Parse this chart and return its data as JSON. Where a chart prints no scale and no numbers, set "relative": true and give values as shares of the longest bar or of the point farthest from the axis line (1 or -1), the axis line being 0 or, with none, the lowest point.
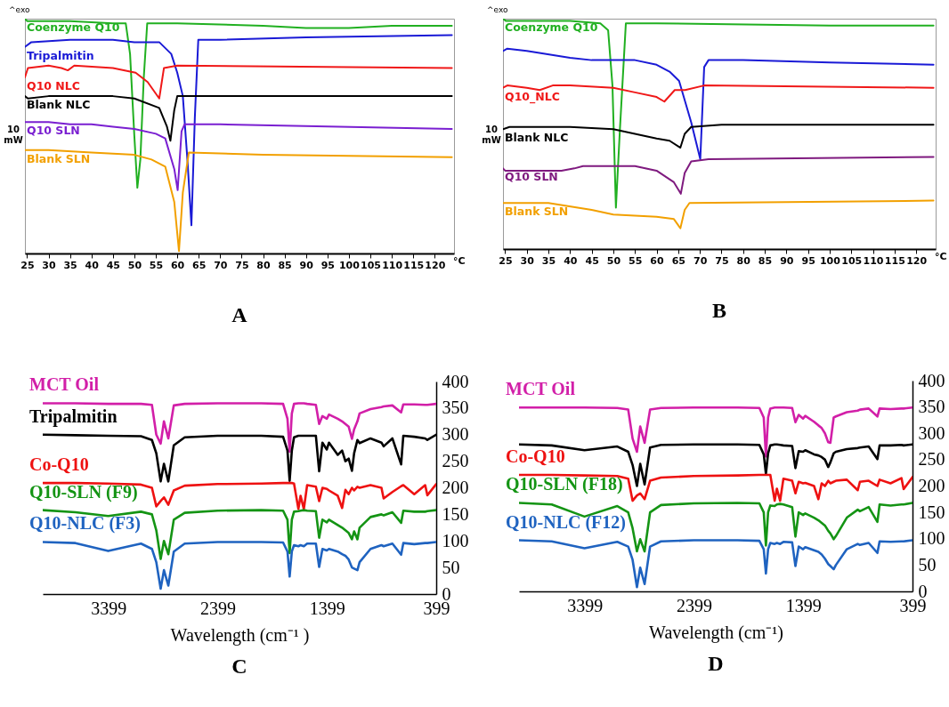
{
  "chart_data": [
    {
      "type": "line",
      "title": "A",
      "relative": true,
      "xlim": [
        24.5,
        124.5
      ],
      "xticks": [
        25,
        30,
        35,
        40,
        45,
        50,
        55,
        60,
        65,
        70,
        75,
        80,
        85,
        90,
        95,
        100,
        105,
        110,
        115,
        120
      ],
      "annotations": [
        "^exo",
        "10\nmW",
        "°C"
      ],
      "series": [
        {
          "name": "Coenzyme Q10",
          "color": "#21b021",
          "x": [
            24.5,
            25,
            35,
            45,
            48,
            49,
            50,
            50.7,
            51.4,
            52.2,
            53,
            60,
            80,
            90,
            100,
            110,
            124
          ],
          "values": [
            1,
            0.99,
            0.99,
            0.98,
            0.98,
            0.85,
            0.5,
            0.28,
            0.4,
            0.75,
            0.98,
            0.98,
            0.97,
            0.96,
            0.96,
            0.97,
            0.97
          ]
        },
        {
          "name": "Tripalmitin",
          "color": "#1a1ad6",
          "x": [
            24.5,
            26,
            35,
            45,
            50,
            55.8,
            58.6,
            60,
            61.3,
            62.4,
            63.3,
            64.1,
            64.9,
            70,
            90,
            124
          ],
          "values": [
            0.88,
            0.9,
            0.91,
            0.91,
            0.9,
            0.9,
            0.85,
            0.77,
            0.67,
            0.39,
            0.12,
            0.58,
            0.91,
            0.91,
            0.92,
            0.93
          ]
        },
        {
          "name": "Q10 NLC",
          "color": "#f01818",
          "x": [
            24.5,
            25.2,
            30,
            33,
            34.5,
            36,
            45,
            50.3,
            53.1,
            55.8,
            56.9,
            60,
            124
          ],
          "values": [
            0.75,
            0.79,
            0.8,
            0.79,
            0.78,
            0.8,
            0.79,
            0.77,
            0.73,
            0.66,
            0.79,
            0.8,
            0.79
          ]
        },
        {
          "name": "Blank NLC",
          "color": "#000000",
          "x": [
            24.5,
            25.2,
            30,
            45,
            50,
            55.8,
            57.6,
            58.4,
            59.3,
            60,
            124
          ],
          "values": [
            0.67,
            0.66,
            0.67,
            0.67,
            0.66,
            0.62,
            0.54,
            0.48,
            0.61,
            0.67,
            0.67
          ]
        },
        {
          "name": "Q10 SLN",
          "color": "#7a1fd1",
          "x": [
            24.5,
            30,
            35,
            40,
            45,
            50,
            55,
            57.2,
            59.3,
            60.1,
            61,
            61.7,
            70,
            124
          ],
          "values": [
            0.56,
            0.56,
            0.55,
            0.55,
            0.54,
            0.53,
            0.51,
            0.49,
            0.36,
            0.27,
            0.52,
            0.55,
            0.55,
            0.53
          ]
        },
        {
          "name": "Blank SLN",
          "color": "#f2a000",
          "x": [
            24.5,
            30,
            40,
            50,
            54,
            57.2,
            59.3,
            60.4,
            61.3,
            62.7,
            80,
            124
          ],
          "values": [
            0.44,
            0.44,
            0.43,
            0.42,
            0.4,
            0.37,
            0.22,
            0.01,
            0.26,
            0.43,
            0.42,
            0.41
          ]
        }
      ]
    },
    {
      "type": "line",
      "title": "B",
      "relative": true,
      "xlim": [
        24.5,
        124.5
      ],
      "xticks": [
        25,
        30,
        35,
        40,
        45,
        50,
        55,
        60,
        65,
        70,
        75,
        80,
        85,
        90,
        95,
        100,
        105,
        110,
        115,
        120
      ],
      "annotations": [
        "^exo",
        "10\nmW",
        "°C"
      ],
      "series": [
        {
          "name": "Coenzyme Q10",
          "color": "#21b021",
          "x": [
            24.5,
            25.2,
            40,
            47,
            48.8,
            49.8,
            50.6,
            51.5,
            52.9,
            60,
            100,
            124
          ],
          "values": [
            1,
            0.99,
            0.99,
            0.98,
            0.95,
            0.71,
            0.18,
            0.51,
            0.98,
            0.98,
            0.97,
            0.97
          ]
        },
        {
          "color": "#1a1ad6",
          "x": [
            24.5,
            25.5,
            30,
            40,
            45,
            55,
            60,
            63,
            65.2,
            68,
            70.1,
            71,
            72,
            80,
            100,
            124
          ],
          "values": [
            0.86,
            0.87,
            0.86,
            0.83,
            0.82,
            0.82,
            0.8,
            0.77,
            0.73,
            0.55,
            0.39,
            0.79,
            0.82,
            0.82,
            0.81,
            0.8
          ]
        },
        {
          "name": "Q10_NLC",
          "color": "#f01818",
          "x": [
            24.5,
            25.5,
            30,
            33,
            36,
            40,
            50,
            55,
            60,
            61.8,
            64.2,
            66.6,
            71,
            124
          ],
          "values": [
            0.7,
            0.71,
            0.7,
            0.69,
            0.71,
            0.71,
            0.7,
            0.68,
            0.66,
            0.64,
            0.69,
            0.69,
            0.71,
            0.7
          ]
        },
        {
          "name": "Blank NLC",
          "color": "#000000",
          "x": [
            24.5,
            26,
            40,
            50,
            55,
            60,
            63,
            65.5,
            66.5,
            68,
            75,
            124
          ],
          "values": [
            0.52,
            0.53,
            0.53,
            0.52,
            0.5,
            0.48,
            0.47,
            0.44,
            0.5,
            0.53,
            0.54,
            0.54
          ]
        },
        {
          "name": "Q10 SLN",
          "color": "#7f1a7f",
          "x": [
            24.5,
            25,
            30,
            38,
            41,
            43,
            55,
            60,
            64,
            65.6,
            66.5,
            68,
            72,
            124
          ],
          "values": [
            0.35,
            0.34,
            0.34,
            0.34,
            0.35,
            0.36,
            0.36,
            0.34,
            0.29,
            0.24,
            0.33,
            0.38,
            0.39,
            0.4
          ]
        },
        {
          "name": "Blank SLN",
          "color": "#f2a000",
          "x": [
            24.5,
            25.5,
            35,
            45,
            50,
            60,
            64,
            65.5,
            66.5,
            67.6,
            124
          ],
          "values": [
            0.2,
            0.2,
            0.2,
            0.17,
            0.15,
            0.14,
            0.13,
            0.09,
            0.17,
            0.2,
            0.21
          ]
        }
      ]
    },
    {
      "type": "line",
      "title": "C",
      "xlabel": "Wavelength (cm⁻¹ )",
      "xlim": [
        3999,
        399
      ],
      "xticks": [
        3399,
        2399,
        1399,
        399
      ],
      "ylim": [
        0,
        400
      ],
      "yticks": [
        400,
        350,
        300,
        250,
        200,
        150,
        100,
        50,
        0
      ],
      "x": [
        3999,
        3700,
        3400,
        3100,
        3000,
        2960,
        2920,
        2890,
        2850,
        2800,
        2700,
        2400,
        2000,
        1800,
        1760,
        1740,
        1720,
        1700,
        1660,
        1640,
        1610,
        1580,
        1500,
        1470,
        1440,
        1400,
        1380,
        1300,
        1260,
        1230,
        1200,
        1170,
        1150,
        1120,
        1100,
        1000,
        900,
        880,
        800,
        720,
        700,
        600,
        500,
        480,
        399
      ],
      "series": [
        {
          "name": "MCT Oil",
          "color": "#d21fa8",
          "values": [
            359,
            359,
            358,
            358,
            356,
            300,
            283,
            325,
            293,
            355,
            358,
            359,
            359,
            358,
            330,
            268,
            340,
            358,
            359,
            359,
            359,
            358,
            356,
            320,
            335,
            330,
            338,
            330,
            325,
            320,
            315,
            292,
            310,
            325,
            340,
            348,
            352,
            353,
            355,
            342,
            357,
            357,
            356,
            356,
            358
          ]
        },
        {
          "name": "Tripalmitin",
          "color": "#000000",
          "values": [
            300,
            299,
            298,
            297,
            290,
            265,
            212,
            245,
            212,
            280,
            295,
            298,
            298,
            296,
            270,
            213,
            270,
            295,
            298,
            298,
            298,
            298,
            298,
            231,
            285,
            272,
            285,
            262,
            270,
            250,
            255,
            232,
            265,
            290,
            284,
            293,
            285,
            278,
            293,
            244,
            298,
            296,
            293,
            290,
            300
          ]
        },
        {
          "name": "Co-Q10",
          "color": "#ee1111",
          "values": [
            209,
            209,
            208,
            206,
            200,
            165,
            175,
            182,
            168,
            195,
            204,
            207,
            208,
            209,
            209,
            209,
            209,
            208,
            160,
            185,
            160,
            205,
            202,
            175,
            200,
            198,
            195,
            185,
            162,
            196,
            188,
            200,
            195,
            202,
            200,
            205,
            200,
            180,
            192,
            203,
            205,
            188,
            205,
            186,
            207
          ]
        },
        {
          "name": "Q10-SLN (F9)",
          "color": "#149414",
          "values": [
            158,
            154,
            147,
            155,
            150,
            120,
            66,
            100,
            75,
            140,
            153,
            157,
            158,
            157,
            140,
            77,
            140,
            155,
            156,
            157,
            158,
            157,
            156,
            106,
            140,
            135,
            140,
            130,
            125,
            120,
            115,
            103,
            118,
            103,
            125,
            145,
            150,
            148,
            154,
            134,
            157,
            155,
            155,
            156,
            158
          ]
        },
        {
          "name": "Q10-NLC (F3)",
          "color": "#1f63c0",
          "values": [
            98,
            96,
            81,
            95,
            85,
            60,
            10,
            45,
            16,
            80,
            95,
            98,
            98,
            97,
            80,
            33,
            80,
            92,
            90,
            92,
            90,
            95,
            95,
            51,
            85,
            82,
            85,
            80,
            75,
            72,
            65,
            50,
            48,
            45,
            60,
            85,
            92,
            90,
            95,
            74,
            96,
            94,
            96,
            96,
            98
          ]
        }
      ]
    },
    {
      "type": "line",
      "title": "D",
      "xlabel": "Wavelength (cm⁻¹)",
      "xlim": [
        3999,
        399
      ],
      "xticks": [
        3399,
        2399,
        1399,
        399
      ],
      "ylim": [
        0,
        400
      ],
      "yticks": [
        400,
        350,
        300,
        250,
        200,
        150,
        100,
        50,
        0
      ],
      "x": [
        3999,
        3700,
        3400,
        3100,
        3000,
        2960,
        2920,
        2890,
        2850,
        2800,
        2700,
        2400,
        2000,
        1800,
        1760,
        1740,
        1720,
        1700,
        1660,
        1640,
        1610,
        1580,
        1500,
        1470,
        1440,
        1400,
        1380,
        1300,
        1260,
        1230,
        1200,
        1170,
        1150,
        1120,
        1100,
        1000,
        900,
        880,
        800,
        720,
        700,
        600,
        500,
        480,
        399
      ],
      "series": [
        {
          "name": "MCT Oil",
          "color": "#d21fa8",
          "values": [
            349,
            349,
            349,
            348,
            345,
            290,
            265,
            313,
            282,
            345,
            348,
            349,
            349,
            348,
            330,
            256,
            330,
            347,
            349,
            349,
            349,
            349,
            348,
            321,
            335,
            328,
            333,
            322,
            315,
            310,
            300,
            283,
            282,
            330,
            332,
            340,
            343,
            345,
            347,
            332,
            347,
            346,
            347,
            347,
            349
          ]
        },
        {
          "color": "#000000",
          "values": [
            279,
            277,
            268,
            275,
            265,
            240,
            200,
            242,
            203,
            273,
            278,
            279,
            279,
            278,
            260,
            223,
            262,
            277,
            279,
            279,
            278,
            277,
            276,
            234,
            266,
            265,
            268,
            260,
            258,
            255,
            250,
            236,
            245,
            262,
            265,
            270,
            272,
            273,
            275,
            251,
            277,
            277,
            278,
            277,
            279
          ]
        },
        {
          "name": "Co-Q10",
          "color": "#ee1111",
          "values": [
            221,
            221,
            220,
            219,
            214,
            172,
            182,
            186,
            175,
            210,
            216,
            219,
            220,
            221,
            221,
            221,
            221,
            221,
            172,
            195,
            172,
            214,
            210,
            186,
            208,
            205,
            206,
            200,
            175,
            205,
            200,
            210,
            205,
            208,
            210,
            212,
            192,
            208,
            210,
            200,
            212,
            205,
            215,
            194,
            217
          ]
        },
        {
          "name": "Q10-SLN (F18)",
          "color": "#149414",
          "values": [
            168,
            165,
            142,
            162,
            150,
            120,
            76,
            99,
            76,
            150,
            164,
            167,
            168,
            167,
            150,
            87,
            150,
            163,
            162,
            165,
            166,
            165,
            160,
            104,
            150,
            145,
            148,
            140,
            135,
            130,
            125,
            115,
            110,
            99,
            105,
            140,
            155,
            152,
            160,
            132,
            165,
            163,
            165,
            165,
            168
          ]
        },
        {
          "name": "Q10-NLC (F12)",
          "color": "#1f63c0",
          "values": [
            97,
            95,
            82,
            94,
            85,
            60,
            8,
            45,
            14,
            85,
            95,
            97,
            97,
            96,
            80,
            34,
            80,
            92,
            90,
            92,
            90,
            94,
            93,
            48,
            85,
            80,
            84,
            78,
            75,
            70,
            62,
            52,
            48,
            42,
            50,
            80,
            90,
            88,
            92,
            73,
            95,
            94,
            95,
            95,
            97
          ]
        }
      ]
    }
  ]
}
